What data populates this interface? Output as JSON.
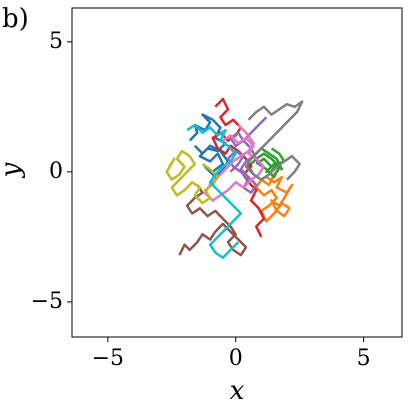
{
  "chart_data": {
    "type": "line",
    "panel_label": "b)",
    "xlabel": "x",
    "ylabel": "y",
    "xlim": [
      -6.4,
      6.5
    ],
    "ylim": [
      -6.35,
      6.3
    ],
    "xticks": [
      {
        "value": -5,
        "label": "−5"
      },
      0,
      5
    ],
    "yticks": [
      {
        "value": -5,
        "label": "−5"
      },
      0,
      5
    ],
    "series": [
      {
        "color": "#1f77b4",
        "x": [
          -1.8,
          -1.5,
          -1.6,
          -1.2,
          -1.0,
          -1.3,
          -0.9,
          -0.6,
          -0.8,
          -0.4,
          -0.7,
          -1.1,
          -1.4,
          -1.0,
          -0.7,
          -0.5,
          -0.9,
          -1.2,
          -0.8,
          -0.5,
          -0.3,
          -0.6,
          -1.0,
          -1.3,
          -1.6
        ],
        "values": [
          1.2,
          1.5,
          1.8,
          1.6,
          1.9,
          2.2,
          2.0,
          1.7,
          1.3,
          1.1,
          0.8,
          0.9,
          0.6,
          0.4,
          0.7,
          0.3,
          0.0,
          0.2,
          -0.2,
          0.1,
          0.4,
          0.8,
          1.0,
          0.7,
          1.0
        ]
      },
      {
        "color": "#ff7f0e",
        "x": [
          1.2,
          1.5,
          1.8,
          1.6,
          2.0,
          2.2,
          1.9,
          1.7,
          1.4,
          1.6,
          1.9,
          2.1,
          1.8,
          1.5,
          1.2,
          1.0,
          1.3,
          1.6,
          1.4,
          1.1,
          0.8,
          1.0,
          1.3,
          1.5,
          1.7
        ],
        "values": [
          -0.2,
          -0.4,
          -0.2,
          -0.6,
          -0.8,
          -0.5,
          -1.0,
          -1.3,
          -1.1,
          -1.5,
          -1.7,
          -1.4,
          -1.2,
          -1.6,
          -1.9,
          -1.5,
          -1.3,
          -1.0,
          -0.7,
          -0.9,
          -0.6,
          -0.3,
          -0.5,
          -0.1,
          0.1
        ]
      },
      {
        "color": "#2ca02c",
        "x": [
          0.8,
          1.1,
          1.4,
          1.2,
          1.5,
          1.8,
          1.6,
          1.3,
          1.0,
          0.7,
          0.9,
          1.2,
          1.5,
          1.7,
          1.4,
          1.1,
          0.8,
          0.5,
          0.7,
          1.0,
          1.3,
          1.6,
          1.9,
          1.7,
          1.4
        ],
        "values": [
          0.3,
          0.5,
          0.2,
          0.0,
          0.3,
          0.1,
          0.5,
          0.7,
          0.9,
          0.6,
          0.3,
          0.1,
          -0.2,
          0.2,
          0.5,
          0.7,
          0.5,
          0.2,
          -0.1,
          -0.3,
          -0.1,
          0.3,
          0.4,
          0.7,
          0.9
        ]
      },
      {
        "color": "#d62728",
        "x": [
          -0.8,
          -0.5,
          -0.3,
          -0.6,
          -0.4,
          -0.1,
          0.2,
          0.0,
          -0.3,
          -0.6,
          -0.9,
          -0.7,
          -0.4,
          -0.2,
          0.1,
          0.4,
          0.6,
          0.3,
          0.5,
          0.8,
          0.6,
          0.9,
          1.1,
          0.8,
          1.0
        ],
        "values": [
          2.5,
          2.8,
          2.4,
          2.1,
          1.8,
          2.0,
          1.7,
          1.4,
          1.2,
          1.5,
          1.3,
          0.9,
          0.7,
          1.0,
          0.8,
          0.5,
          0.2,
          -0.1,
          -0.4,
          -0.7,
          -1.1,
          -1.4,
          -1.8,
          -2.1,
          -2.5
        ]
      },
      {
        "color": "#9467bd",
        "x": [
          -0.2,
          0.1,
          0.3,
          0.0,
          -0.3,
          -0.1,
          0.2,
          0.5,
          0.3,
          0.6,
          0.8,
          0.5,
          0.2,
          0.4,
          0.7,
          0.9,
          0.6,
          0.3,
          0.1,
          -0.2,
          0.0,
          0.3,
          0.6,
          0.9,
          1.2
        ],
        "values": [
          0.0,
          0.3,
          0.6,
          0.8,
          0.5,
          0.2,
          0.0,
          -0.3,
          -0.6,
          -0.8,
          -0.5,
          -0.2,
          0.1,
          0.4,
          0.6,
          0.3,
          0.9,
          1.2,
          1.5,
          1.3,
          1.0,
          1.2,
          1.5,
          1.8,
          2.1
        ]
      },
      {
        "color": "#8c564b",
        "x": [
          -1.5,
          -1.3,
          -1.6,
          -1.9,
          -1.7,
          -1.4,
          -1.1,
          -0.8,
          -0.5,
          -0.2,
          0.0,
          -0.3,
          -0.1,
          0.2,
          0.4,
          0.1,
          -0.2,
          -0.5,
          -0.8,
          -1.0,
          -1.3,
          -1.5,
          -1.8,
          -2.0,
          -2.2
        ],
        "values": [
          -0.5,
          -0.8,
          -1.0,
          -1.3,
          -1.6,
          -1.4,
          -1.7,
          -1.5,
          -1.8,
          -2.1,
          -2.4,
          -2.7,
          -3.0,
          -3.2,
          -2.9,
          -2.6,
          -2.3,
          -2.0,
          -2.3,
          -2.6,
          -2.4,
          -2.7,
          -3.0,
          -2.8,
          -3.2
        ]
      },
      {
        "color": "#e377c2",
        "x": [
          -0.5,
          -0.2,
          0.1,
          0.4,
          0.7,
          0.5,
          0.8,
          1.1,
          0.9,
          0.6,
          0.3,
          0.0,
          -0.3,
          -0.6,
          -0.9,
          -1.2,
          -1.0,
          -0.7,
          -0.4,
          -0.1,
          0.2,
          0.5,
          0.7,
          0.4,
          0.1
        ],
        "values": [
          1.2,
          1.4,
          1.1,
          1.3,
          1.0,
          0.7,
          0.5,
          0.2,
          -0.1,
          -0.3,
          -0.6,
          -0.4,
          -0.7,
          -0.9,
          -1.1,
          -0.8,
          -0.5,
          -0.2,
          0.1,
          0.4,
          0.6,
          0.8,
          1.1,
          1.5,
          1.8
        ]
      },
      {
        "color": "#7f7f7f",
        "x": [
          0.5,
          0.8,
          1.1,
          1.4,
          1.7,
          2.0,
          2.3,
          2.6,
          2.4,
          2.1,
          1.8,
          1.5,
          1.2,
          0.9,
          0.6,
          0.4,
          0.7,
          1.0,
          1.3,
          1.6,
          1.9,
          2.2,
          2.5,
          2.3,
          2.0
        ],
        "values": [
          2.0,
          2.3,
          2.5,
          2.2,
          2.4,
          2.6,
          2.5,
          2.7,
          2.3,
          2.0,
          1.7,
          1.4,
          1.1,
          0.8,
          0.5,
          0.2,
          -0.1,
          -0.3,
          -0.1,
          0.2,
          0.4,
          0.6,
          0.3,
          0.0,
          -0.3
        ]
      },
      {
        "color": "#bcbd22",
        "x": [
          -2.6,
          -2.4,
          -2.7,
          -2.5,
          -2.2,
          -2.0,
          -2.3,
          -2.1,
          -1.8,
          -1.6,
          -1.9,
          -2.2,
          -2.5,
          -2.3,
          -2.0,
          -1.7,
          -1.4,
          -1.6,
          -1.3,
          -1.0,
          -1.2,
          -0.9,
          -0.7,
          -1.0,
          -1.3
        ],
        "values": [
          0.2,
          0.5,
          0.0,
          -0.3,
          -0.1,
          0.2,
          0.5,
          0.8,
          0.6,
          0.3,
          0.0,
          -0.3,
          -0.6,
          -0.9,
          -0.7,
          -0.4,
          -0.6,
          -0.9,
          -1.2,
          -1.0,
          -0.7,
          -0.5,
          -0.2,
          0.1,
          0.3
        ]
      },
      {
        "color": "#17becf",
        "x": [
          -1.9,
          -1.6,
          -1.3,
          -1.0,
          -0.7,
          -0.4,
          -0.6,
          -0.3,
          0.0,
          -0.2,
          -0.5,
          -0.8,
          -1.0,
          -0.7,
          -0.4,
          -0.1,
          0.2,
          -0.1,
          -0.4,
          -0.7,
          -1.0,
          -0.8,
          -0.5,
          -0.2,
          0.1
        ],
        "values": [
          1.6,
          1.8,
          1.5,
          1.7,
          1.4,
          1.6,
          1.2,
          1.0,
          0.7,
          0.4,
          0.2,
          -0.1,
          -0.4,
          -0.7,
          -1.0,
          -1.3,
          -1.6,
          -1.9,
          -2.2,
          -2.5,
          -2.8,
          -3.1,
          -3.3,
          -3.0,
          -2.7
        ]
      }
    ]
  }
}
